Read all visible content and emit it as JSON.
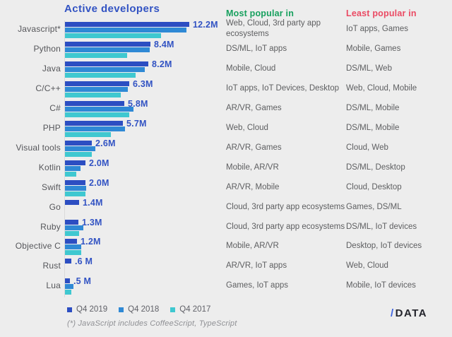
{
  "title": "Active developers",
  "headers": {
    "most": "Most popular in",
    "least": "Least popular in"
  },
  "legend": {
    "items": [
      {
        "label": "Q4 2019",
        "color": "#2c4ec2"
      },
      {
        "label": "Q4 2018",
        "color": "#2f89d5"
      },
      {
        "label": "Q4 2017",
        "color": "#3fc8d0"
      }
    ]
  },
  "footnote": "(*) JavaScript includes CoffeeScript, TypeScript",
  "logo": {
    "slash": "/",
    "word": "DATA"
  },
  "colors": {
    "background": "#ededed",
    "title": "#3253c3",
    "value_label": "#3253c3",
    "most_header": "#17a05e",
    "least_header": "#ea4a63",
    "axis_line": "#dadada",
    "language_label": "#55565a",
    "table_text": "#5d5e60",
    "footnote": "#8f9094",
    "logo_slash": "#3e63e0",
    "logo_text": "#23242b"
  },
  "chart_data": {
    "type": "bar",
    "orientation": "horizontal",
    "title": "Active developers",
    "unit": "millions of developers",
    "xlim": [
      0,
      15.2
    ],
    "grid": false,
    "legend_position": "bottom",
    "categories": [
      "Javascript*",
      "Python",
      "Java",
      "C/C++",
      "C#",
      "PHP",
      "Visual tools",
      "Kotlin",
      "Swift",
      "Go",
      "Ruby",
      "Objective C",
      "Rust",
      "Lua"
    ],
    "series": [
      {
        "name": "Q4 2019",
        "color": "#2c4ec2",
        "values": [
          12.2,
          8.4,
          8.2,
          6.3,
          5.8,
          5.7,
          2.6,
          2.0,
          2.0,
          1.4,
          1.3,
          1.2,
          0.6,
          0.5
        ]
      },
      {
        "name": "Q4 2018",
        "color": "#2f89d5",
        "values": [
          11.9,
          8.3,
          7.8,
          6.2,
          6.7,
          5.9,
          3.0,
          1.5,
          2.1,
          null,
          1.8,
          1.6,
          null,
          0.85
        ]
      },
      {
        "name": "Q4 2017",
        "color": "#3fc8d0",
        "values": [
          9.4,
          6.1,
          6.9,
          5.5,
          6.3,
          4.5,
          2.6,
          1.1,
          2.0,
          null,
          1.4,
          1.6,
          null,
          0.6
        ]
      }
    ],
    "value_labels": [
      "12.2M",
      "8.4M",
      "8.2M",
      "6.3M",
      "5.8M",
      "5.7M",
      "2.6M",
      "2.0M",
      "2.0M",
      "1.4M",
      "1.3M",
      "1.2M",
      ".6 M",
      ".5 M"
    ],
    "most_popular": [
      "Web, Cloud, 3rd party app ecosystems",
      "DS/ML, IoT apps",
      "Mobile, Cloud",
      "IoT apps, IoT Devices, Desktop",
      "AR/VR, Games",
      "Web, Cloud",
      "AR/VR, Games",
      "Mobile, AR/VR",
      "AR/VR, Mobile",
      "Cloud, 3rd party app ecosystems",
      "Cloud, 3rd party app ecosystems",
      "Mobile, AR/VR",
      "AR/VR, IoT apps",
      "Games, IoT apps"
    ],
    "least_popular": [
      "IoT apps, Games",
      "Mobile, Games",
      "DS/ML, Web",
      "Web, Cloud, Mobile",
      "DS/ML, Mobile",
      "DS/ML, Mobile",
      "Cloud, Web",
      "DS/ML, Desktop",
      "Cloud, Desktop",
      "Games, DS/ML",
      "DS/ML, IoT devices",
      "Desktop, IoT devices",
      "Web, Cloud",
      "Mobile, IoT devices"
    ]
  }
}
